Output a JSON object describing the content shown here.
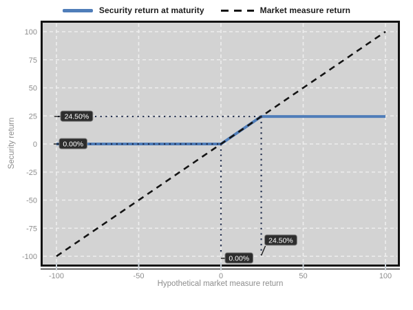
{
  "chart_data": {
    "type": "line",
    "title": "",
    "xlabel": "Hypothetical market measure return",
    "ylabel": "Security return",
    "xlim": [
      -100,
      100
    ],
    "ylim": [
      -100,
      100
    ],
    "x_ticks": [
      -100,
      -50,
      0,
      50,
      100
    ],
    "y_ticks": [
      -100,
      -75,
      -50,
      -25,
      0,
      25,
      50,
      75,
      100
    ],
    "grid": {
      "style": "dashed",
      "color": "#eeeeee"
    },
    "panel_bg": "#d3d3d3",
    "legend_position": "top-center",
    "series": [
      {
        "name": "Security return at maturity",
        "color": "#4f7db9",
        "dash": "solid",
        "width": 4,
        "points": [
          [
            -100,
            0
          ],
          [
            0,
            0
          ],
          [
            24.5,
            24.5
          ],
          [
            100,
            24.5
          ]
        ]
      },
      {
        "name": "Market measure return",
        "color": "#141414",
        "dash": "dashed",
        "width": 2.6,
        "points": [
          [
            -100,
            -100
          ],
          [
            100,
            100
          ]
        ]
      }
    ],
    "annotations": {
      "dotted_color": "#24304e",
      "cap": 24.5,
      "floor": 0,
      "labels": [
        {
          "id": "cap-left",
          "text": "24.50%"
        },
        {
          "id": "floor-left",
          "text": "0.00%"
        },
        {
          "id": "floor-bottom",
          "text": "0.00%"
        },
        {
          "id": "cap-bottom",
          "text": "24.50%"
        }
      ],
      "label_box_bg": "#2d2d2d",
      "label_box_border": "#7d7d7d",
      "label_text_color": "#ffffff"
    },
    "axis_text_color": "#8d8d8d"
  }
}
